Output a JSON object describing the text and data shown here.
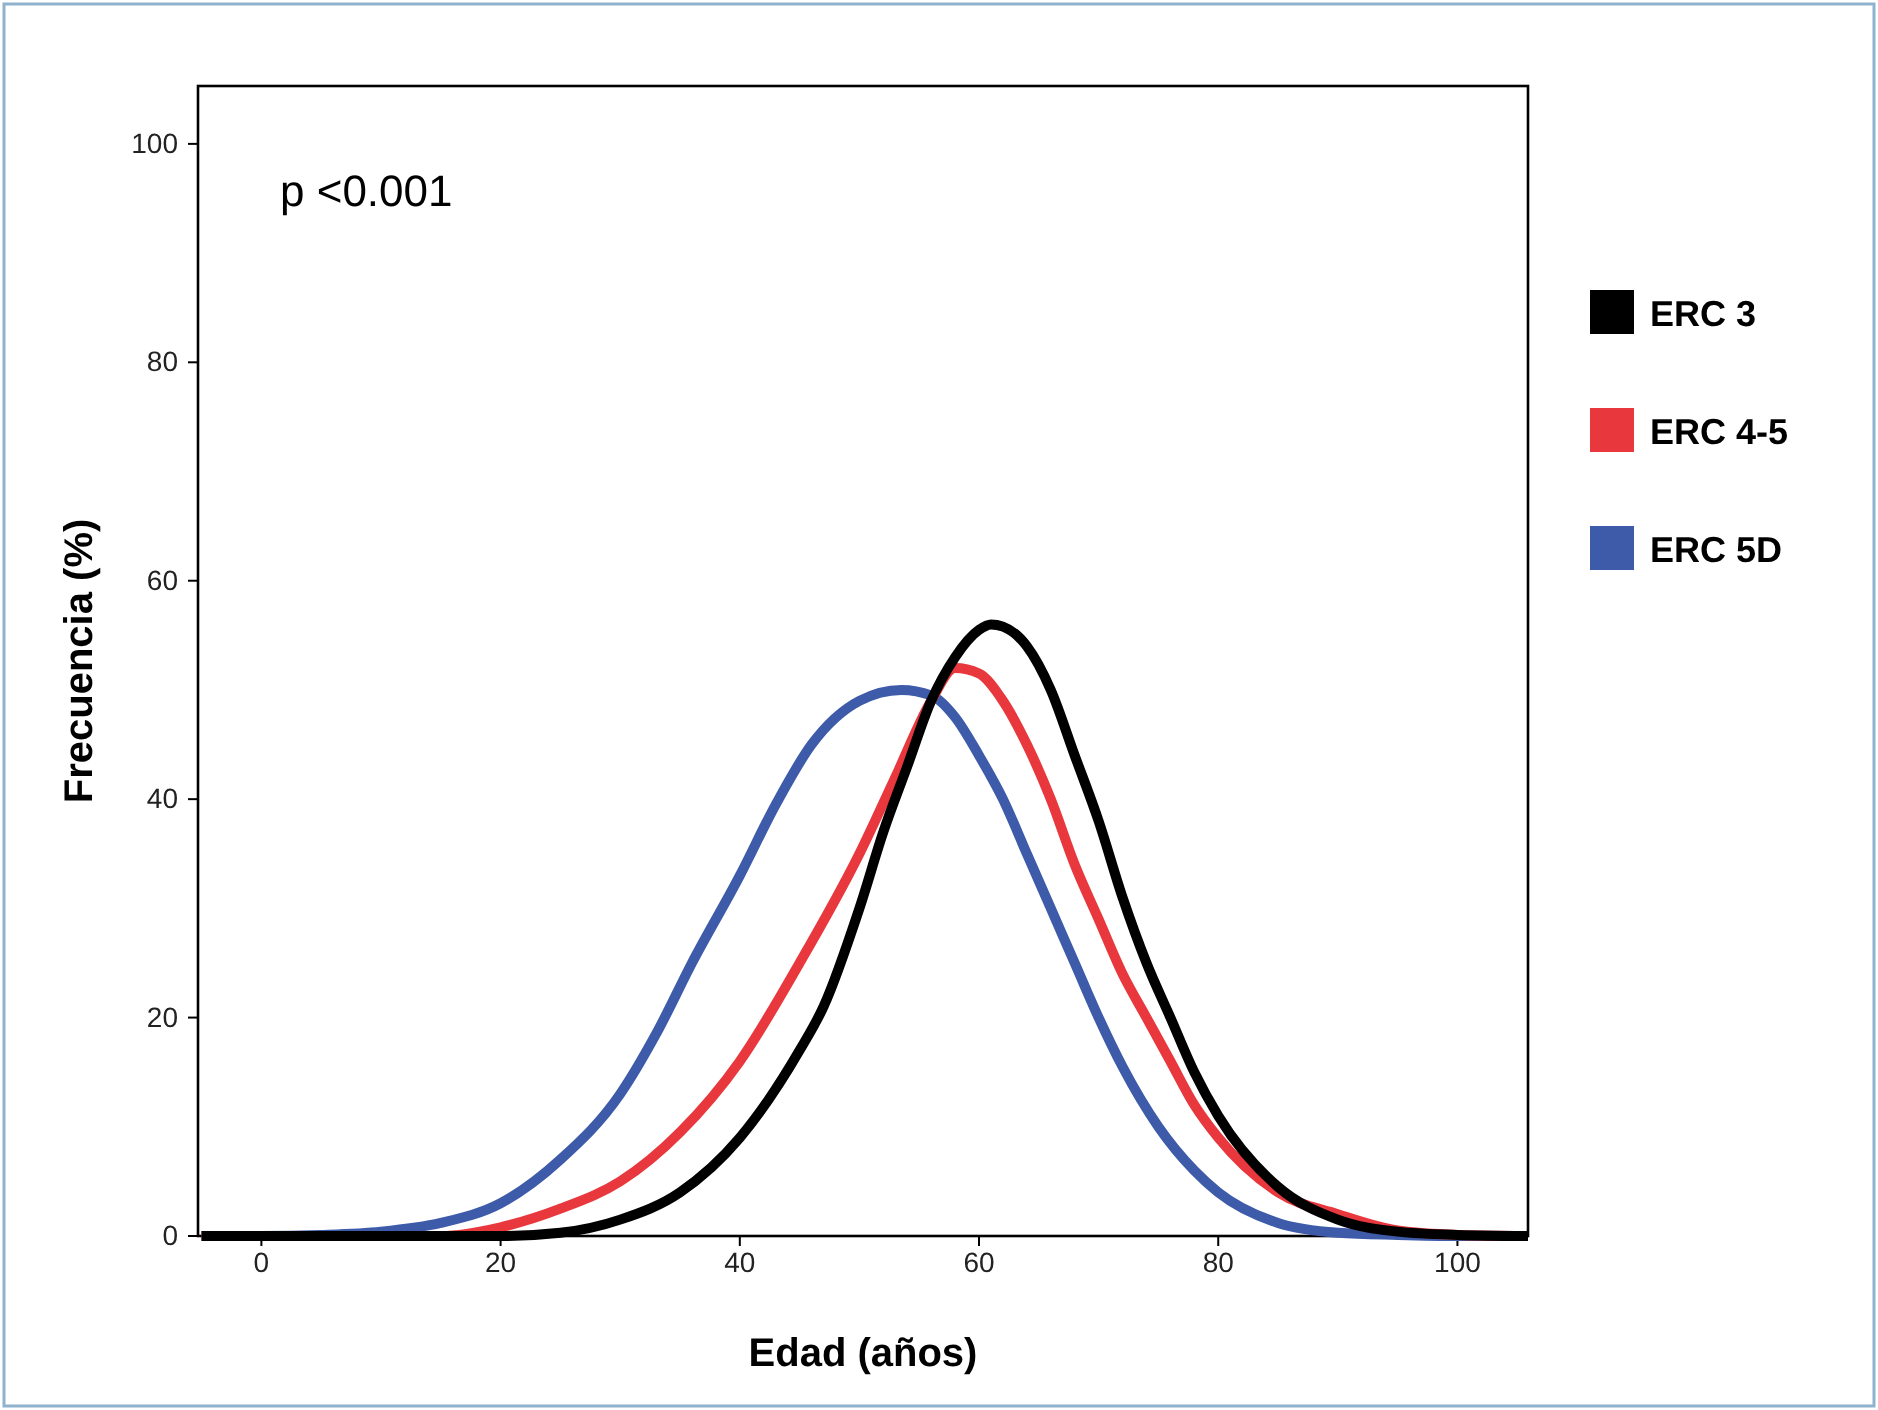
{
  "chart_data": {
    "type": "line",
    "xlabel": "Edad (años)",
    "ylabel": "Frecuencia  (%)",
    "annotations": [
      "p <0.001"
    ],
    "xlim": [
      -5.3,
      105.9
    ],
    "xticks": [
      0,
      20,
      40,
      60,
      80,
      100
    ],
    "ylim": [
      0,
      105.3
    ],
    "yticks": [
      0,
      20,
      40,
      60,
      80,
      100
    ],
    "grid": false,
    "legend": "right",
    "marker": "none",
    "line_style": "solid",
    "series": [
      {
        "name": "ERC 3",
        "color": "#000000",
        "x": [
          -5,
          20,
          25,
          30,
          35,
          40,
          45,
          47,
          50,
          52,
          54,
          56,
          58,
          60,
          61,
          62,
          64,
          66,
          68,
          70,
          72,
          74,
          76,
          78,
          80,
          85,
          90,
          95,
          100,
          105.9
        ],
        "values": [
          0,
          0,
          0.3,
          1.5,
          4,
          9,
          17,
          21,
          30,
          37,
          43,
          49,
          53,
          55.5,
          56,
          55.8,
          54,
          50,
          44,
          38,
          31,
          25,
          20,
          15,
          11,
          4.5,
          1.5,
          0.4,
          0.1,
          0
        ]
      },
      {
        "name": "ERC 4-5",
        "color": "#e8383d",
        "x": [
          -5,
          15,
          20,
          25,
          30,
          35,
          40,
          45,
          50,
          53,
          56,
          58,
          60,
          62,
          64,
          66,
          68,
          70,
          72,
          74,
          76,
          78,
          80,
          85,
          90,
          95,
          100,
          105.9
        ],
        "values": [
          0,
          0,
          0.8,
          2.5,
          5,
          9.5,
          16,
          25,
          35,
          42,
          49,
          52,
          51.5,
          49,
          45,
          40,
          34,
          29,
          24,
          20,
          16,
          12,
          9,
          4,
          2,
          0.5,
          0.1,
          0
        ]
      },
      {
        "name": "ERC 5D",
        "color": "#3e5ba9",
        "x": [
          -5,
          0,
          5,
          10,
          15,
          20,
          25,
          30,
          33,
          36,
          40,
          43,
          46,
          50,
          53.5,
          56,
          58,
          60,
          62,
          64,
          66,
          68,
          70,
          72,
          75,
          78,
          80,
          85,
          90,
          95,
          100,
          105.9
        ],
        "values": [
          0,
          0,
          0.1,
          0.4,
          1.2,
          3,
          7,
          13,
          18.5,
          25,
          33,
          39.5,
          45,
          49,
          50,
          49.5,
          47.5,
          44,
          40,
          35,
          30,
          25,
          20,
          15.5,
          10,
          6,
          4,
          1.2,
          0.3,
          0.1,
          0,
          0
        ]
      }
    ]
  }
}
